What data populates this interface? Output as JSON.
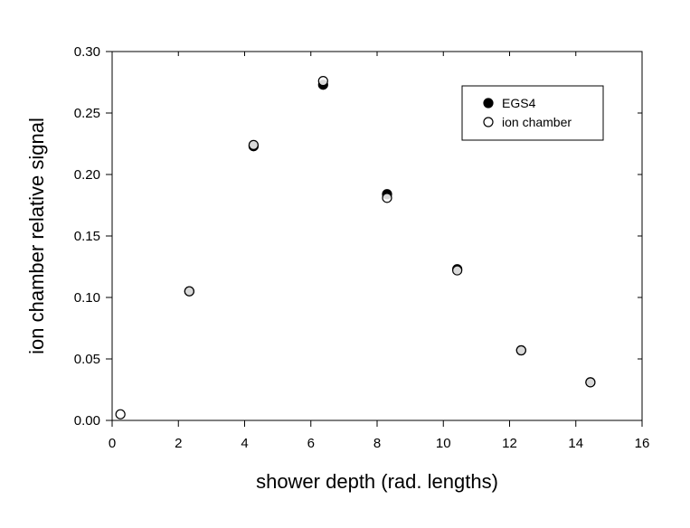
{
  "chart_data": {
    "type": "scatter",
    "title": "",
    "xlabel": "shower depth (rad. lengths)",
    "ylabel": "ion chamber relative signal",
    "xlim": [
      0,
      16
    ],
    "ylim": [
      0,
      0.3
    ],
    "x_ticks": [
      "0",
      "2",
      "4",
      "6",
      "8",
      "10",
      "12",
      "14",
      "16"
    ],
    "y_ticks": [
      "0.00",
      "0.05",
      "0.10",
      "0.15",
      "0.20",
      "0.25",
      "0.30"
    ],
    "grid": false,
    "legend_position": "top-right",
    "series": [
      {
        "name": "EGS4",
        "marker": "filled-circle",
        "color": "#000000",
        "points": [
          {
            "x": 2.33,
            "y": 0.105
          },
          {
            "x": 4.27,
            "y": 0.223
          },
          {
            "x": 6.37,
            "y": 0.273
          },
          {
            "x": 8.3,
            "y": 0.184
          },
          {
            "x": 10.42,
            "y": 0.123
          },
          {
            "x": 12.35,
            "y": 0.057
          },
          {
            "x": 14.44,
            "y": 0.031
          }
        ]
      },
      {
        "name": "ion chamber",
        "marker": "open-circle",
        "color": "#000000",
        "points": [
          {
            "x": 0.25,
            "y": 0.005
          },
          {
            "x": 2.33,
            "y": 0.105
          },
          {
            "x": 4.27,
            "y": 0.224
          },
          {
            "x": 6.37,
            "y": 0.276
          },
          {
            "x": 8.3,
            "y": 0.181
          },
          {
            "x": 10.42,
            "y": 0.122
          },
          {
            "x": 12.35,
            "y": 0.057
          },
          {
            "x": 14.44,
            "y": 0.031
          }
        ]
      }
    ]
  }
}
